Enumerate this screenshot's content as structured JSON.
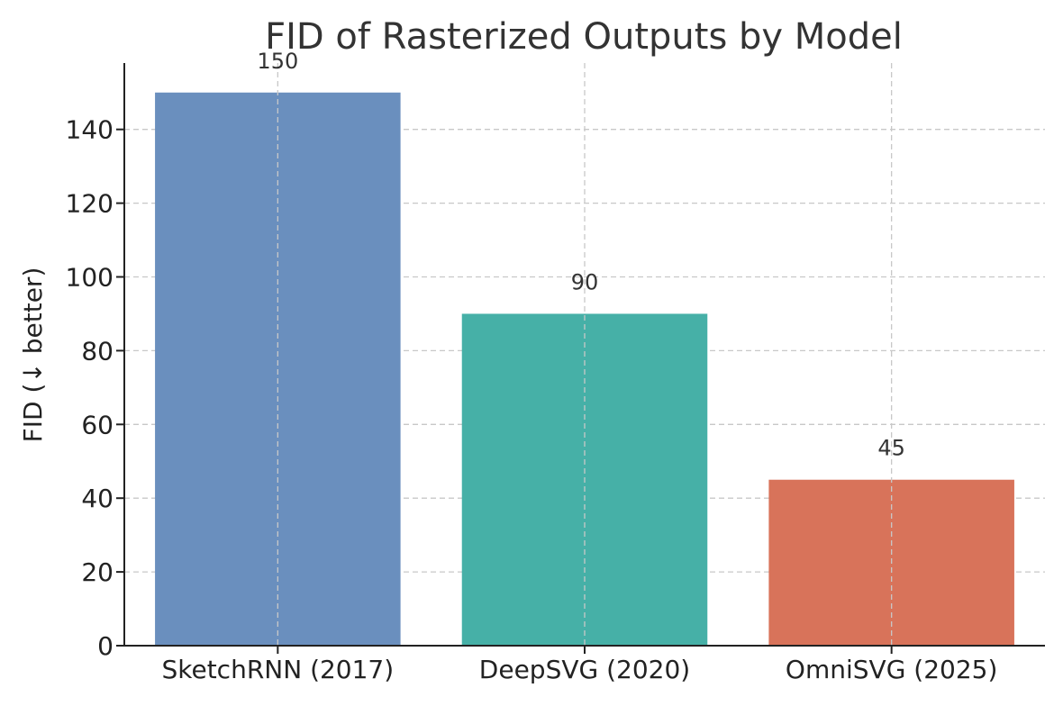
{
  "chart_data": {
    "type": "bar",
    "title": "FID of Rasterized Outputs by Model",
    "xlabel": "",
    "ylabel": "FID (↓ better)",
    "categories": [
      "SketchRNN (2017)",
      "DeepSVG (2020)",
      "OmniSVG (2025)"
    ],
    "values": [
      150,
      90,
      45
    ],
    "colors": [
      "#6a8fbe",
      "#46b0a7",
      "#d8735a"
    ],
    "ylim": [
      0,
      158
    ],
    "yticks": [
      0,
      20,
      40,
      60,
      80,
      100,
      120,
      140
    ],
    "grid": true,
    "data_labels": true
  }
}
